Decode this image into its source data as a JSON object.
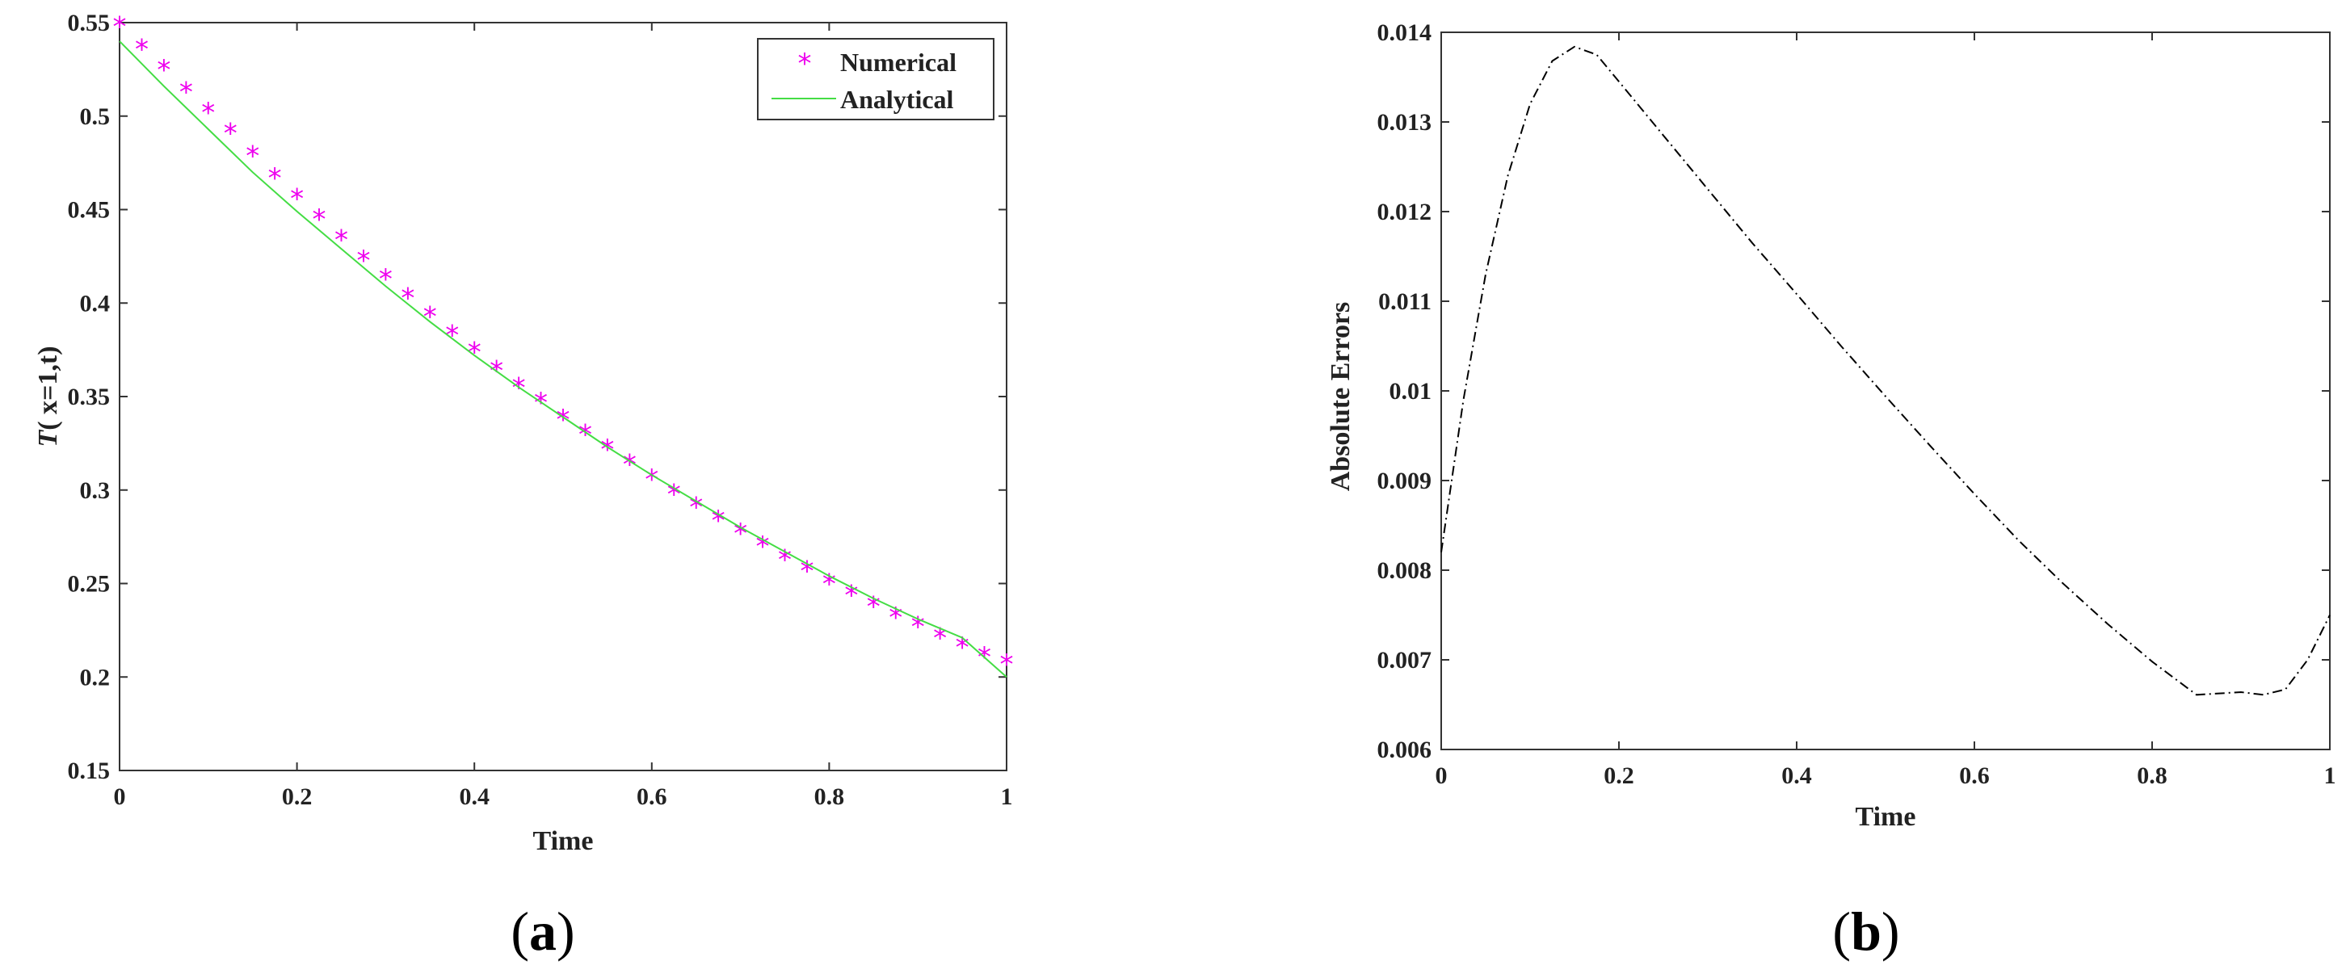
{
  "chart_data": [
    {
      "panel": "a",
      "type": "line",
      "caption_open": "(",
      "caption_letter": "a",
      "caption_close": ")",
      "xlabel": "Time",
      "ylabel_main": "T",
      "ylabel_rest": "( x=1,t)",
      "xlim": [
        0,
        1
      ],
      "ylim": [
        0.15,
        0.55
      ],
      "xticks": [
        "0",
        "0.2",
        "0.4",
        "0.6",
        "0.8",
        "1"
      ],
      "yticks": [
        "0.15",
        "0.2",
        "0.25",
        "0.3",
        "0.35",
        "0.4",
        "0.45",
        "0.5",
        "0.55"
      ],
      "legend": [
        "Numerical",
        "Analytical"
      ],
      "legend_position": "top-right",
      "series": [
        {
          "name": "Numerical",
          "style": "star-markers",
          "color": "#ee00ee",
          "x": [
            0,
            0.025,
            0.05,
            0.075,
            0.1,
            0.125,
            0.15,
            0.175,
            0.2,
            0.225,
            0.25,
            0.275,
            0.3,
            0.325,
            0.35,
            0.375,
            0.4,
            0.425,
            0.45,
            0.475,
            0.5,
            0.525,
            0.55,
            0.575,
            0.6,
            0.625,
            0.65,
            0.675,
            0.7,
            0.725,
            0.75,
            0.775,
            0.8,
            0.825,
            0.85,
            0.875,
            0.9,
            0.925,
            0.95,
            0.975,
            1
          ],
          "y": [
            0.548,
            0.536,
            0.525,
            0.513,
            0.502,
            0.491,
            0.479,
            0.467,
            0.456,
            0.445,
            0.434,
            0.423,
            0.413,
            0.403,
            0.393,
            0.383,
            0.374,
            0.364,
            0.355,
            0.347,
            0.338,
            0.33,
            0.322,
            0.314,
            0.306,
            0.298,
            0.291,
            0.284,
            0.277,
            0.27,
            0.263,
            0.257,
            0.25,
            0.244,
            0.238,
            0.232,
            0.227,
            0.221,
            0.216,
            0.211,
            0.207
          ]
        },
        {
          "name": "Analytical",
          "style": "solid-line",
          "color": "#44dd44",
          "x": [
            0,
            0.05,
            0.1,
            0.15,
            0.2,
            0.25,
            0.3,
            0.35,
            0.4,
            0.45,
            0.5,
            0.55,
            0.6,
            0.65,
            0.7,
            0.75,
            0.8,
            0.85,
            0.9,
            0.95,
            1
          ],
          "y": [
            0.54,
            0.516,
            0.493,
            0.47,
            0.449,
            0.429,
            0.409,
            0.39,
            0.372,
            0.355,
            0.339,
            0.323,
            0.308,
            0.294,
            0.28,
            0.267,
            0.254,
            0.242,
            0.231,
            0.221,
            0.2
          ]
        }
      ]
    },
    {
      "panel": "b",
      "type": "line",
      "caption_open": "(",
      "caption_letter": "b",
      "caption_close": ")",
      "xlabel": "Time",
      "ylabel": "Absolute Errors",
      "xlim": [
        0,
        1
      ],
      "ylim": [
        0.006,
        0.014
      ],
      "xticks": [
        "0",
        "0.2",
        "0.4",
        "0.6",
        "0.8",
        "1"
      ],
      "yticks": [
        "0.006",
        "0.007",
        "0.008",
        "0.009",
        "0.01",
        "0.011",
        "0.012",
        "0.013",
        "0.014"
      ],
      "series": [
        {
          "name": "Absolute Errors",
          "style": "dash-dot-line",
          "color": "#000000",
          "x": [
            0,
            0.025,
            0.05,
            0.075,
            0.1,
            0.125,
            0.15,
            0.175,
            0.2,
            0.25,
            0.3,
            0.35,
            0.4,
            0.45,
            0.5,
            0.55,
            0.6,
            0.65,
            0.7,
            0.75,
            0.8,
            0.85,
            0.9,
            0.925,
            0.95,
            0.975,
            1
          ],
          "y": [
            0.0082,
            0.0099,
            0.0113,
            0.0124,
            0.0132,
            0.01368,
            0.01384,
            0.01375,
            0.01345,
            0.01285,
            0.01225,
            0.01165,
            0.01108,
            0.0105,
            0.00994,
            0.00939,
            0.00885,
            0.00833,
            0.00785,
            0.0074,
            0.00698,
            0.00661,
            0.00664,
            0.00661,
            0.00667,
            0.007,
            0.0075
          ]
        }
      ]
    }
  ]
}
